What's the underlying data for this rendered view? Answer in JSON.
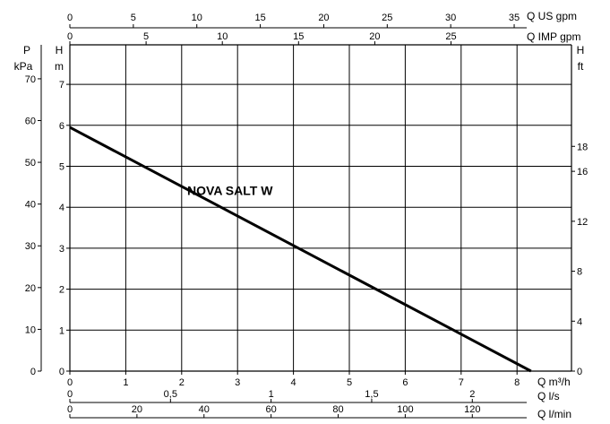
{
  "chart_data": {
    "type": "line",
    "title": "",
    "grid": true,
    "x_primary": {
      "quantity": "Q",
      "unit": "m³/h",
      "ticks": [
        "0",
        "1",
        "2",
        "3",
        "4",
        "5",
        "6",
        "7",
        "8"
      ],
      "range": [
        0,
        8.3
      ]
    },
    "y_primary": {
      "quantity": "H",
      "unit": "m",
      "ticks": [
        "0",
        "1",
        "2",
        "3",
        "4",
        "5",
        "6",
        "7"
      ],
      "range": [
        0,
        7.5
      ]
    },
    "series": [
      {
        "name": "NOVA SALT W",
        "x": [
          0,
          8.25
        ],
        "y": [
          5.95,
          0
        ],
        "color": "#000000"
      }
    ],
    "secondary_axes": {
      "top_us": {
        "quantity": "Q",
        "unit": "US gpm",
        "ticks": [
          0,
          5,
          10,
          15,
          20,
          25,
          30,
          35
        ],
        "factor": 4.4029
      },
      "top_imp": {
        "quantity": "Q",
        "unit": "IMP gpm",
        "ticks": [
          0,
          5,
          10,
          15,
          20,
          25
        ],
        "factor": 3.6662
      },
      "bottom_ls": {
        "quantity": "Q",
        "unit": "l/s",
        "ticks": [
          0,
          0.5,
          1,
          1.5,
          2
        ],
        "tick_labels": [
          "0",
          "0,5",
          "1",
          "1,5",
          "2"
        ],
        "factor": 0.27778
      },
      "bottom_lmin": {
        "quantity": "Q",
        "unit": "l/min",
        "ticks": [
          0,
          20,
          40,
          60,
          80,
          100,
          120
        ],
        "factor": 16.6667
      },
      "left_kpa": {
        "quantity": "P",
        "unit": "kPa",
        "ticks": [
          0,
          10,
          20,
          30,
          40,
          50,
          60,
          70
        ],
        "factor": 9.81
      },
      "right_ft": {
        "quantity": "H",
        "unit": "ft",
        "ticks": [
          0,
          4,
          8,
          12,
          16,
          18
        ],
        "factor": 3.2808
      }
    }
  }
}
